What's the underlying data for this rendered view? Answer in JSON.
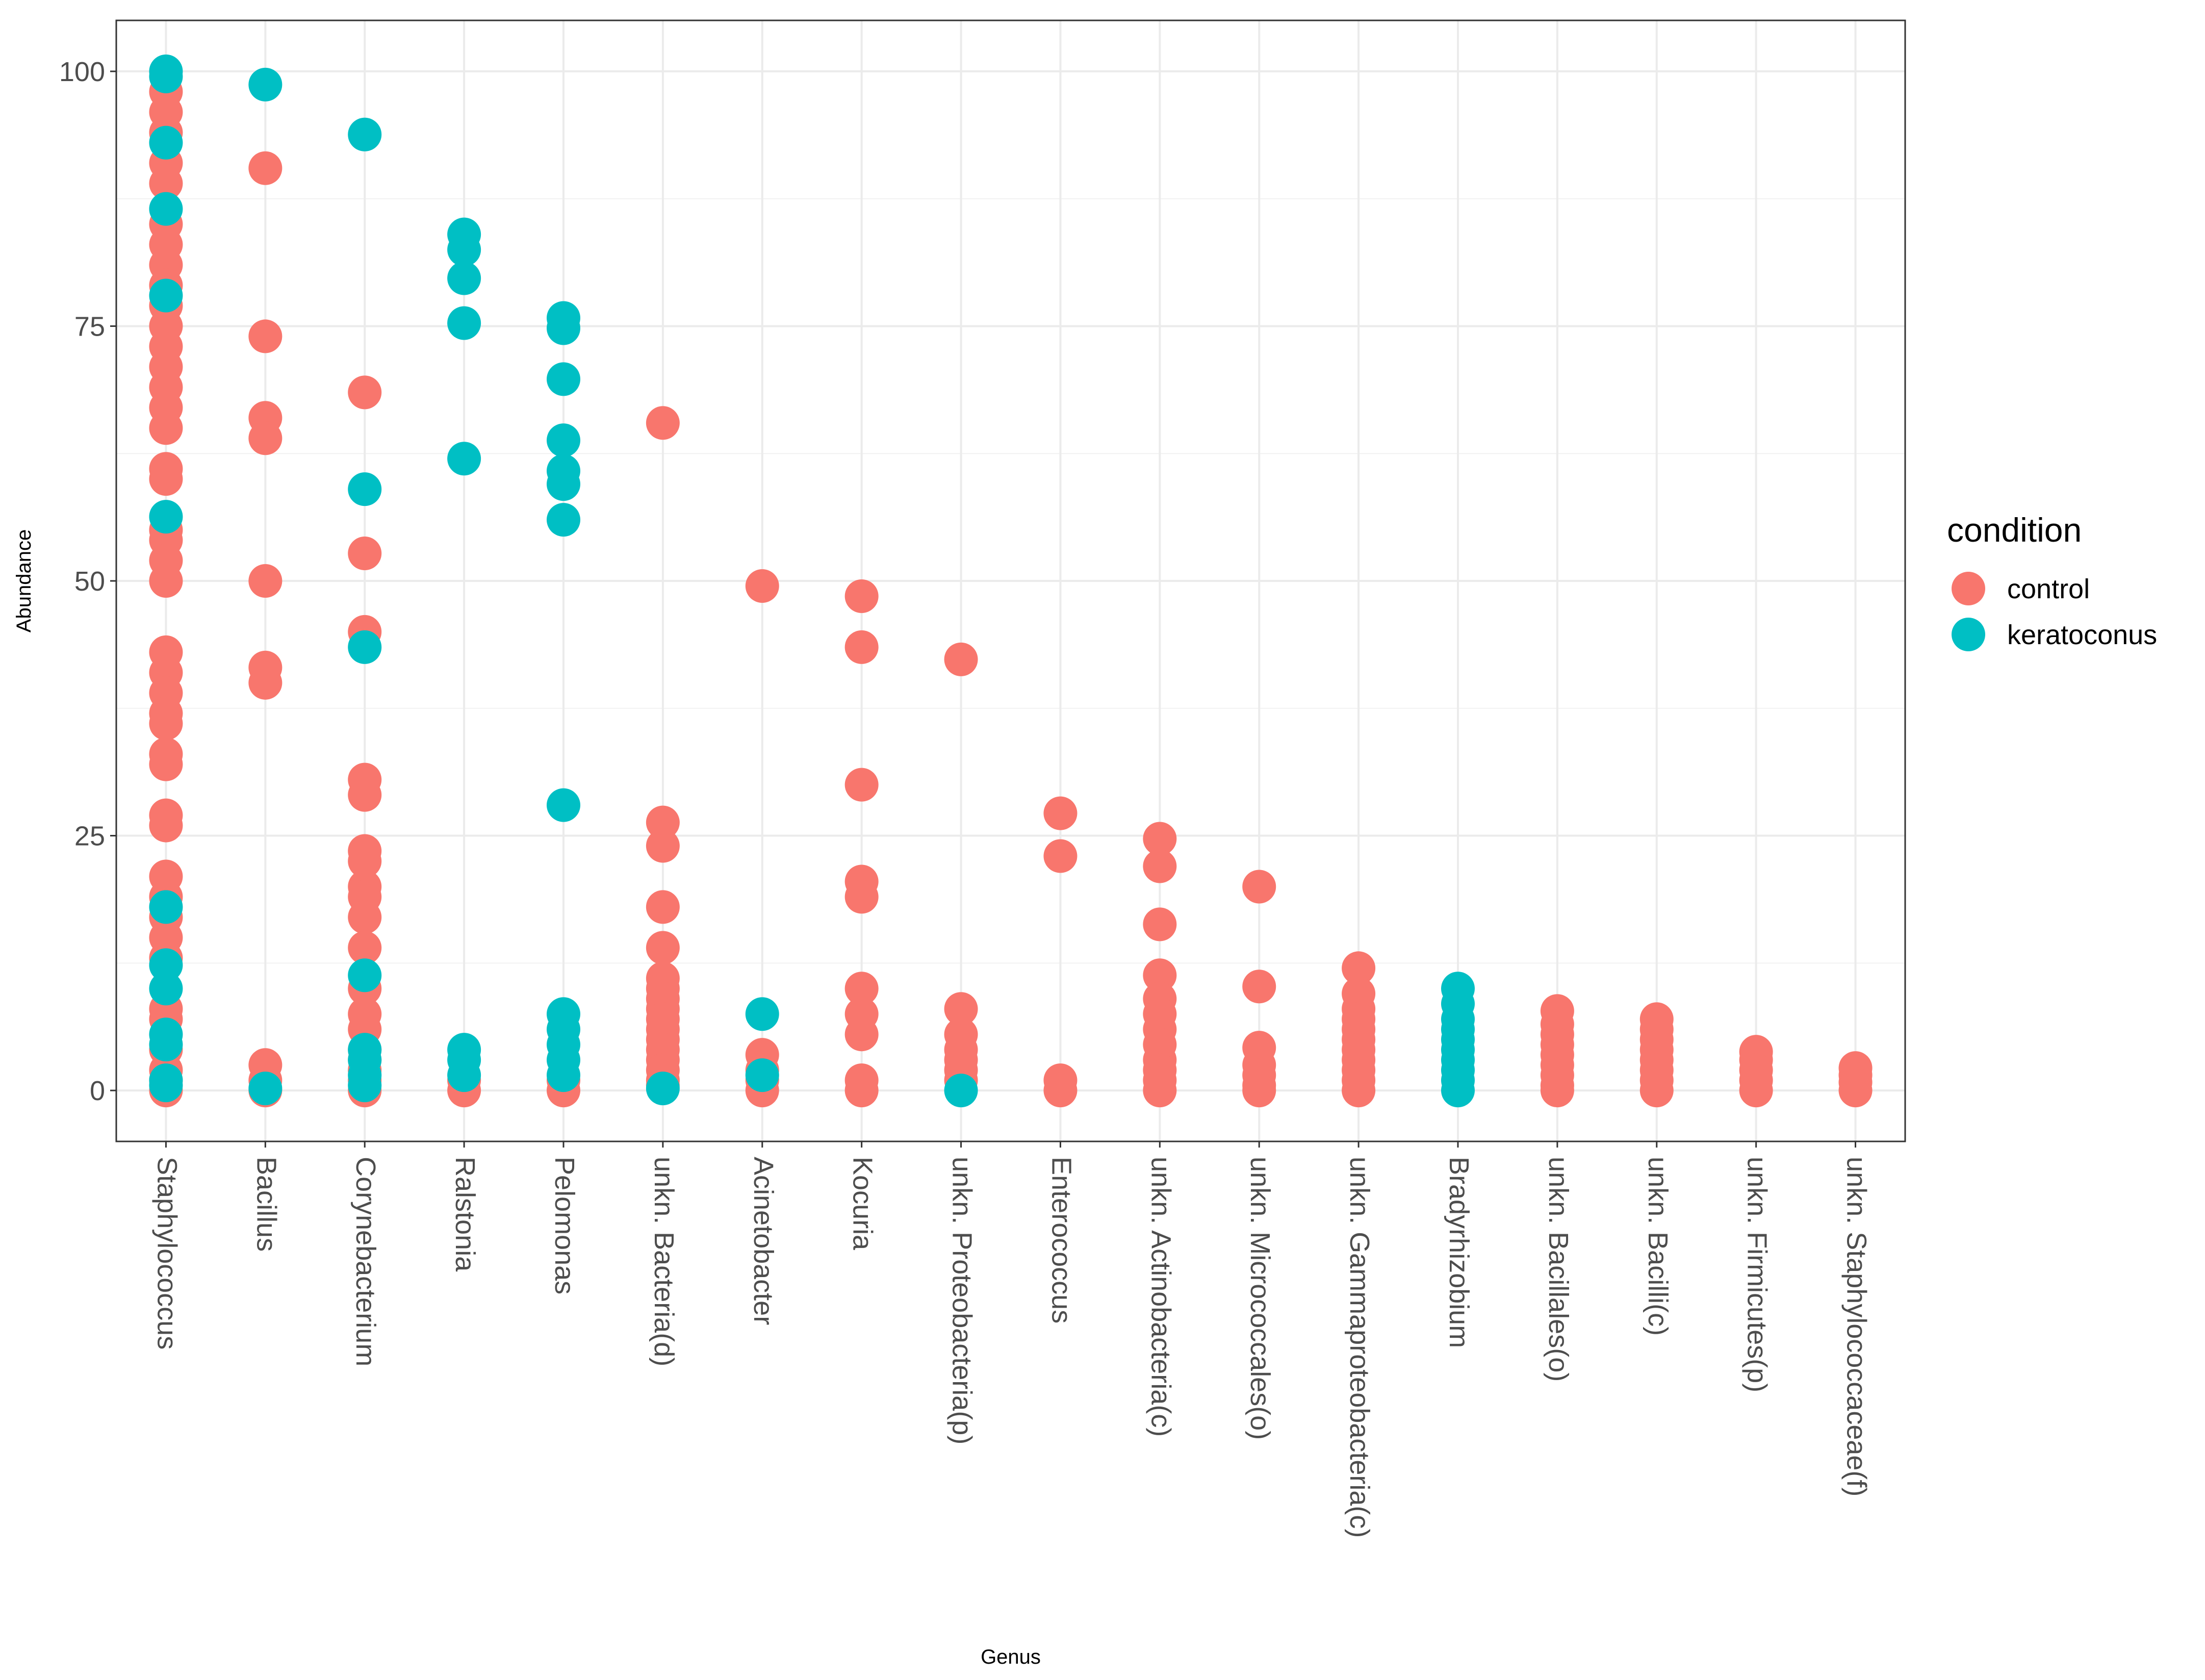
{
  "chart_data": {
    "type": "scatter",
    "title": "",
    "xlabel": "Genus",
    "ylabel": "Abundance",
    "ylim": [
      -5,
      105
    ],
    "yticks": [
      0,
      25,
      50,
      75,
      100
    ],
    "grid": true,
    "legend": {
      "title": "condition",
      "position": "right"
    },
    "categories": [
      "Staphylococcus",
      "Bacillus",
      "Corynebacterium",
      "Ralstonia",
      "Pelomonas",
      "unkn. Bacteria(d)",
      "Acinetobacter",
      "Kocuria",
      "unkn. Proteobacteria(p)",
      "Enterococcus",
      "unkn. Actinobacteria(c)",
      "unkn. Micrococcales(o)",
      "unkn. Gammaproteobacteria(c)",
      "Bradyrhizobium",
      "unkn. Bacillales(o)",
      "unkn. Bacilli(c)",
      "unkn. Firmicutes(p)",
      "unkn. Staphylococcaceae(f)"
    ],
    "series": [
      {
        "name": "control",
        "color": "#F8766D",
        "points": {
          "Staphylococcus": [
            98,
            96,
            94,
            91,
            89,
            85,
            83,
            81,
            79,
            77,
            75,
            73,
            71,
            69,
            67,
            65,
            61,
            60,
            55,
            54,
            52,
            50,
            43,
            41,
            39,
            37,
            36,
            33,
            32,
            27,
            26,
            21,
            19,
            17,
            15,
            13,
            8,
            7,
            4,
            2,
            1,
            0
          ],
          "Bacillus": [
            90.5,
            74,
            66,
            64,
            50,
            41.5,
            40,
            2.5,
            1,
            0
          ],
          "Corynebacterium": [
            68.5,
            52.7,
            45,
            30.5,
            29,
            23.5,
            22.5,
            20,
            19,
            17,
            14,
            10,
            7.5,
            6,
            4,
            3,
            2,
            1,
            0
          ],
          "Ralstonia": [
            1,
            0
          ],
          "Pelomonas": [
            1,
            0
          ],
          "unkn. Bacteria(d)": [
            65.5,
            26.3,
            24,
            18,
            14,
            11,
            10,
            9,
            8,
            7,
            6,
            5,
            4,
            3,
            2,
            1,
            0.5
          ],
          "Acinetobacter": [
            49.5,
            3.5,
            2,
            1,
            0
          ],
          "Kocuria": [
            48.5,
            43.5,
            30,
            20.5,
            19,
            10,
            7.5,
            5.5,
            1,
            0
          ],
          "unkn. Proteobacteria(p)": [
            42.3,
            8,
            5.5,
            4,
            3,
            2,
            1
          ],
          "Enterococcus": [
            27.2,
            23,
            1,
            0
          ],
          "unkn. Actinobacteria(c)": [
            24.7,
            22,
            16.3,
            11.3,
            9,
            7.5,
            6,
            4.5,
            3,
            2,
            1,
            0
          ],
          "unkn. Micrococcales(o)": [
            20,
            10.2,
            4.2,
            2.5,
            1.5,
            0.5,
            0
          ],
          "unkn. Gammaproteobacteria(c)": [
            12,
            9.5,
            8,
            7,
            6,
            5,
            4,
            3,
            2,
            1,
            0
          ],
          "Bradyrhizobium": [],
          "unkn. Bacillales(o)": [
            7.8,
            6.5,
            5.5,
            4.5,
            3.5,
            2.5,
            1.5,
            0.5,
            0
          ],
          "unkn. Bacilli(c)": [
            7,
            6,
            5,
            4,
            3,
            2,
            1,
            0
          ],
          "unkn. Firmicutes(p)": [
            3.8,
            3,
            2,
            1,
            0
          ],
          "unkn. Staphylococcaceae(f)": [
            2.2,
            1.5,
            0.8,
            0
          ]
        }
      },
      {
        "name": "keratoconus",
        "color": "#00BFC4",
        "points": {
          "Staphylococcus": [
            100,
            99.5,
            93,
            86.5,
            78,
            56.3,
            18,
            12.3,
            10,
            5.5,
            4.5,
            1,
            0.5
          ],
          "Bacillus": [
            98.7,
            0.2
          ],
          "Corynebacterium": [
            93.8,
            59,
            43.5,
            11.3,
            4,
            3,
            1.5,
            0.5
          ],
          "Ralstonia": [
            84,
            82.5,
            79.7,
            75.3,
            62,
            4,
            3,
            1.5
          ],
          "Pelomonas": [
            75.8,
            74.8,
            69.8,
            63.8,
            60.8,
            59.5,
            56,
            28,
            7.5,
            6,
            4.5,
            3,
            1.5
          ],
          "unkn. Bacteria(d)": [
            0.2
          ],
          "Acinetobacter": [
            7.5,
            1.5
          ],
          "Kocuria": [],
          "unkn. Proteobacteria(p)": [
            0
          ],
          "Enterococcus": [],
          "unkn. Actinobacteria(c)": [],
          "unkn. Micrococcales(o)": [],
          "unkn. Gammaproteobacteria(c)": [],
          "Bradyrhizobium": [
            10,
            8.5,
            7,
            6,
            5,
            4,
            3,
            2,
            1,
            0
          ],
          "unkn. Bacillales(o)": [],
          "unkn. Bacilli(c)": [],
          "unkn. Firmicutes(p)": [],
          "unkn. Staphylococcaceae(f)": []
        }
      }
    ]
  }
}
